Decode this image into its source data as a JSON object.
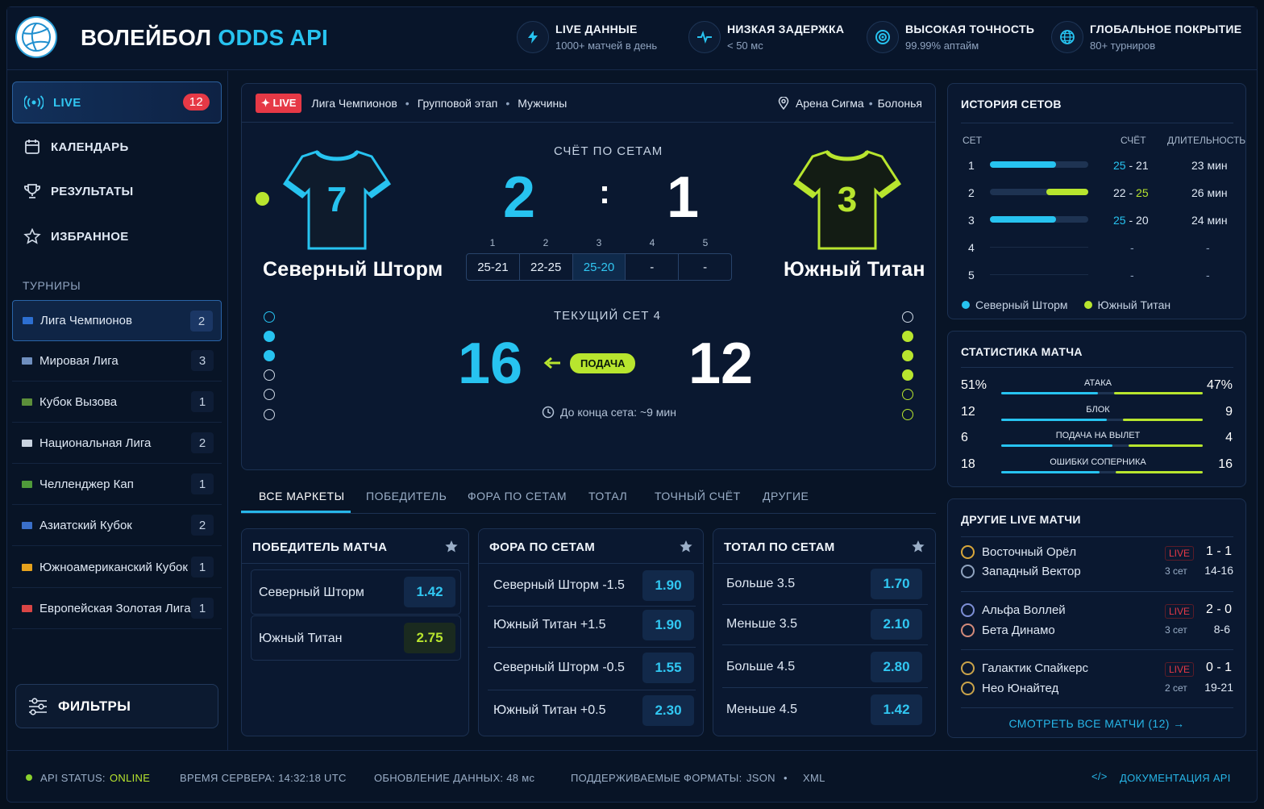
{
  "brand": {
    "part1": "ВОЛЕЙБОЛ",
    "part2": "ODDS API"
  },
  "features": [
    {
      "title": "LIVE ДАННЫЕ",
      "sub": "1000+ матчей в день",
      "icon": "lightning-icon"
    },
    {
      "title": "НИЗКАЯ ЗАДЕРЖКА",
      "sub": "< 50 мс",
      "icon": "pulse-icon"
    },
    {
      "title": "ВЫСОКАЯ ТОЧНОСТЬ",
      "sub": "99.99% аптайм",
      "icon": "target-icon"
    },
    {
      "title": "ГЛОБАЛЬНОЕ ПОКРЫТИЕ",
      "sub": "80+ турниров",
      "icon": "globe-icon"
    }
  ],
  "nav": [
    {
      "label": "LIVE",
      "count": "12",
      "icon": "broadcast-icon"
    },
    {
      "label": "КАЛЕНДАРЬ",
      "icon": "calendar-icon"
    },
    {
      "label": "РЕЗУЛЬТАТЫ",
      "icon": "trophy-icon"
    },
    {
      "label": "ИЗБРАННОЕ",
      "icon": "star-icon"
    }
  ],
  "tournaments_label": "ТУРНИРЫ",
  "tournaments": [
    {
      "name": "Лига Чемпионов",
      "count": "2",
      "flag": "#2d6fd1"
    },
    {
      "name": "Мировая Лига",
      "count": "3",
      "flag": "#6f8fbf"
    },
    {
      "name": "Кубок Вызова",
      "count": "1",
      "flag": "#5c8f3a"
    },
    {
      "name": "Национальная Лига",
      "count": "2",
      "flag": "#c9d3e0"
    },
    {
      "name": "Челленджер Кап",
      "count": "1",
      "flag": "#4f9a3a"
    },
    {
      "name": "Азиатский Кубок",
      "count": "2",
      "flag": "#3a6fc9"
    },
    {
      "name": "Южноамериканский Кубок",
      "count": "1",
      "flag": "#e6a21d"
    },
    {
      "name": "Европейская Золотая Лига",
      "count": "1",
      "flag": "#d94545"
    }
  ],
  "filters_label": "ФИЛЬТРЫ",
  "match": {
    "live": "LIVE",
    "league": "Лига Чемпионов",
    "stage": "Групповой этап",
    "gender": "Мужчины",
    "venue": "Арена Сигма",
    "city": "Болонья",
    "home": {
      "name": "Северный Шторм",
      "number": "7",
      "color": "#27c3f0"
    },
    "away": {
      "name": "Южный Титан",
      "number": "3",
      "color": "#b8e52e"
    },
    "sets_caption": "СЧЁТ ПО СЕТАМ",
    "sets_home": "2",
    "sets_sep": ":",
    "sets_away": "1",
    "set_numbers": [
      "1",
      "2",
      "3",
      "4",
      "5"
    ],
    "set_scores": [
      "25-21",
      "22-25",
      "25-20",
      "-",
      "-"
    ],
    "current_caption": "ТЕКУЩИЙ СЕТ 4",
    "points_home": "16",
    "points_away": "12",
    "serve_label": "ПОДАЧА",
    "time_left": "До конца сета: ~9 мин"
  },
  "tabs": [
    "ВСЕ МАРКЕТЫ",
    "ПОБЕДИТЕЛЬ",
    "ФОРА ПО СЕТАМ",
    "ТОТАЛ",
    "ТОЧНЫЙ СЧЁТ",
    "ДРУГИЕ"
  ],
  "markets": {
    "winner": {
      "title": "ПОБЕДИТЕЛЬ МАТЧА",
      "rows": [
        {
          "label": "Северный Шторм",
          "odd": "1.42"
        },
        {
          "label": "Южный Титан",
          "odd": "2.75"
        }
      ]
    },
    "handicap": {
      "title": "ФОРА ПО СЕТАМ",
      "rows": [
        {
          "label": "Северный Шторм -1.5",
          "odd": "1.90"
        },
        {
          "label": "Южный Титан +1.5",
          "odd": "1.90"
        },
        {
          "label": "Северный Шторм -0.5",
          "odd": "1.55"
        },
        {
          "label": "Южный Титан +0.5",
          "odd": "2.30"
        }
      ]
    },
    "total": {
      "title": "ТОТАЛ ПО СЕТАМ",
      "rows": [
        {
          "label": "Больше 3.5",
          "odd": "1.70"
        },
        {
          "label": "Меньше 3.5",
          "odd": "2.10"
        },
        {
          "label": "Больше 4.5",
          "odd": "2.80"
        },
        {
          "label": "Меньше 4.5",
          "odd": "1.42"
        }
      ]
    }
  },
  "set_history": {
    "title": "ИСТОРИЯ СЕТОВ",
    "cols": [
      "СЕТ",
      "СЧЁТ",
      "ДЛИТЕЛЬНОСТЬ"
    ],
    "rows": [
      {
        "set": "1",
        "home": "25",
        "away": "21",
        "dur": "23 мин",
        "winner": "home"
      },
      {
        "set": "2",
        "home": "22",
        "away": "25",
        "dur": "26 мин",
        "winner": "away"
      },
      {
        "set": "3",
        "home": "25",
        "away": "20",
        "dur": "24 мин",
        "winner": "home"
      },
      {
        "set": "4",
        "home": "-",
        "away": "",
        "dur": "-",
        "winner": ""
      },
      {
        "set": "5",
        "home": "-",
        "away": "",
        "dur": "-",
        "winner": ""
      }
    ],
    "legend": [
      "Северный Шторм",
      "Южный Титан"
    ]
  },
  "stats": {
    "title": "СТАТИСТИКА МАТЧА",
    "rows": [
      {
        "label": "АТАКА",
        "home": "51%",
        "away": "47%",
        "home_share": 0.52,
        "away_share": 0.48
      },
      {
        "label": "БЛОК",
        "home": "12",
        "away": "9",
        "home_share": 0.57,
        "away_share": 0.43
      },
      {
        "label": "ПОДАЧА НА ВЫЛЕТ",
        "home": "6",
        "away": "4",
        "home_share": 0.6,
        "away_share": 0.4
      },
      {
        "label": "ОШИБКИ СОПЕРНИКА",
        "home": "18",
        "away": "16",
        "home_share": 0.53,
        "away_share": 0.47
      }
    ]
  },
  "other_live": {
    "title": "ДРУГИЕ LIVE МАТЧИ",
    "matches": [
      {
        "home": "Восточный Орёл",
        "away": "Западный Вектор",
        "live": "LIVE",
        "sets": "3 сет",
        "score": "1 - 1",
        "points": "14-16"
      },
      {
        "home": "Альфа Воллей",
        "away": "Бета Динамо",
        "live": "LIVE",
        "sets": "3 сет",
        "score": "2 - 0",
        "points": "8-6"
      },
      {
        "home": "Галактик Спайкерс",
        "away": "Нео Юнайтед",
        "live": "LIVE",
        "sets": "2 сет",
        "score": "0 - 1",
        "points": "19-21"
      }
    ],
    "view_all": "СМОТРЕТЬ ВСЕ МАТЧИ (12)"
  },
  "footer": {
    "status_label": "API STATUS:",
    "status_value": "ONLINE",
    "server_time": "ВРЕМЯ СЕРВЕРА: 14:32:18 UTC",
    "update": "ОБНОВЛЕНИЕ ДАННЫХ: 48 мс",
    "formats_label": "ПОДДЕРЖИВАЕМЫЕ ФОРМАТЫ:",
    "format1": "JSON",
    "format2": "XML",
    "docs": "ДОКУМЕНТАЦИЯ API"
  }
}
